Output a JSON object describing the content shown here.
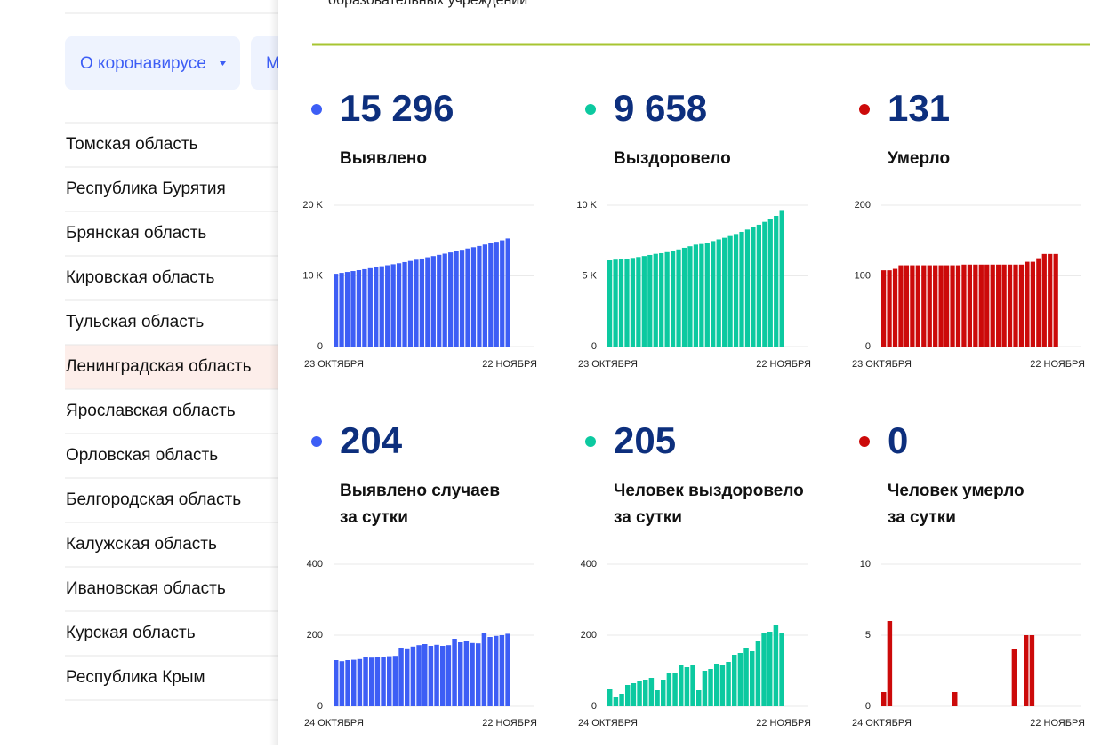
{
  "nav": {
    "buttons": [
      "О коронавирусе",
      "М"
    ],
    "regions": [
      "Томская область",
      "Республика Бурятия",
      "Брянская область",
      "Кировская область",
      "Тульская область",
      "Ленинградская область",
      "Ярославская область",
      "Орловская область",
      "Белгородская область",
      "Калужская область",
      "Ивановская область",
      "Курская область",
      "Республика Крым"
    ],
    "selected_index": 5
  },
  "panel": {
    "top_text": "образовательных учреждений",
    "stats": [
      {
        "total": "15 296",
        "label": [
          "Выявлено"
        ],
        "color": "#3d5ef5",
        "chart": {
          "type": "bar",
          "ylim": [
            0,
            20000
          ],
          "yticks": [
            0,
            {
              "value": 10000,
              "label": "10 K"
            },
            {
              "value": 20000,
              "label": "20 K"
            }
          ],
          "x_labels": [
            "23 ОКТЯБРЯ",
            "22 НОЯБРЯ"
          ],
          "values": [
            10300,
            10430,
            10557,
            10687,
            10818,
            10951,
            11091,
            11228,
            11368,
            11507,
            11648,
            11790,
            11955,
            12118,
            12286,
            12458,
            12633,
            12803,
            12976,
            13146,
            13318,
            13508,
            13688,
            13871,
            14049,
            14226,
            14433,
            14628,
            14826,
            15026,
            15296
          ]
        }
      },
      {
        "total": "9 658",
        "label": [
          "Выздоровело"
        ],
        "color": "#0cc9a0",
        "chart": {
          "type": "bar",
          "ylim": [
            0,
            10000
          ],
          "yticks": [
            0,
            {
              "value": 5000,
              "label": "5 K"
            },
            {
              "value": 10000,
              "label": "10 K"
            }
          ],
          "x_labels": [
            "23 ОКТЯБРЯ",
            "22 НОЯБРЯ"
          ],
          "values": [
            6100,
            6150,
            6175,
            6210,
            6270,
            6335,
            6405,
            6480,
            6560,
            6605,
            6680,
            6775,
            6870,
            6985,
            7095,
            7210,
            7255,
            7355,
            7460,
            7580,
            7695,
            7820,
            7965,
            8115,
            8280,
            8435,
            8620,
            8825,
            9035,
            9245,
            9658
          ]
        }
      },
      {
        "total": "131",
        "label": [
          "Умерло"
        ],
        "color": "#cc0a0a",
        "chart": {
          "type": "bar",
          "ylim": [
            0,
            200
          ],
          "yticks": [
            0,
            100,
            200
          ],
          "x_labels": [
            "23 ОКТЯБРЯ",
            "22 НОЯБРЯ"
          ],
          "values": [
            108,
            108,
            110,
            115,
            115,
            115,
            115,
            115,
            115,
            115,
            115,
            115,
            115,
            115,
            116,
            116,
            116,
            116,
            116,
            116,
            116,
            116,
            116,
            116,
            116,
            120,
            120,
            125,
            131,
            131,
            131
          ]
        }
      },
      {
        "total": "204",
        "label": [
          "Выявлено случаев",
          "за сутки"
        ],
        "color": "#3d5ef5",
        "chart": {
          "type": "bar",
          "ylim": [
            0,
            400
          ],
          "yticks": [
            0,
            200,
            400
          ],
          "x_labels": [
            "24 ОКТЯБРЯ",
            "22 НОЯБРЯ"
          ],
          "values": [
            130,
            127,
            130,
            131,
            133,
            140,
            137,
            140,
            139,
            141,
            142,
            165,
            163,
            168,
            172,
            175,
            170,
            173,
            170,
            172,
            190,
            180,
            183,
            178,
            177,
            207,
            195,
            198,
            200,
            204
          ]
        }
      },
      {
        "total": "205",
        "label": [
          "Человек выздоровело",
          "за сутки"
        ],
        "color": "#0cc9a0",
        "chart": {
          "type": "bar",
          "ylim": [
            0,
            400
          ],
          "yticks": [
            0,
            200,
            400
          ],
          "x_labels": [
            "24 ОКТЯБРЯ",
            "22 НОЯБРЯ"
          ],
          "values": [
            50,
            25,
            35,
            60,
            65,
            70,
            75,
            80,
            45,
            75,
            95,
            95,
            115,
            110,
            115,
            45,
            100,
            105,
            120,
            115,
            125,
            145,
            150,
            165,
            155,
            185,
            205,
            210,
            230,
            205
          ]
        }
      },
      {
        "total": "0",
        "label": [
          "Человек умерло",
          "за сутки"
        ],
        "color": "#cc0a0a",
        "chart": {
          "type": "bar",
          "ylim": [
            0,
            10
          ],
          "yticks": [
            0,
            5,
            10
          ],
          "x_labels": [
            "24 ОКТЯБРЯ",
            "22 НОЯБРЯ"
          ],
          "values": [
            1,
            6,
            0,
            0,
            0,
            0,
            0,
            0,
            0,
            0,
            0,
            0,
            1,
            0,
            0,
            0,
            0,
            0,
            0,
            0,
            0,
            0,
            4,
            0,
            5,
            5,
            0,
            0,
            0,
            0
          ]
        }
      }
    ]
  }
}
